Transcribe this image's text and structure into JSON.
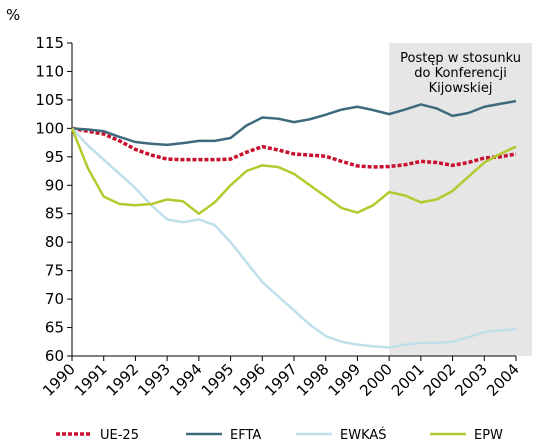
{
  "chart_data": {
    "type": "line",
    "y_label": "%",
    "annotation": [
      "Postęp w stosunku",
      "do Konferencji",
      "Kijowskiej"
    ],
    "shaded_region": [
      2000,
      2004
    ],
    "x": [
      1990,
      1990.5,
      1991,
      1991.5,
      1992,
      1992.5,
      1993,
      1993.5,
      1994,
      1994.5,
      1995,
      1995.5,
      1996,
      1996.5,
      1997,
      1997.5,
      1998,
      1998.5,
      1999,
      1999.5,
      2000,
      2000.5,
      2001,
      2001.5,
      2002,
      2002.5,
      2003,
      2003.5,
      2004
    ],
    "xlim": [
      1990,
      2004
    ],
    "xticks": [
      1990,
      1991,
      1992,
      1993,
      1994,
      1995,
      1996,
      1997,
      1998,
      1999,
      2000,
      2001,
      2002,
      2003,
      2004
    ],
    "ylim": [
      60,
      115
    ],
    "yticks": [
      60,
      65,
      70,
      75,
      80,
      85,
      90,
      95,
      100,
      105,
      110,
      115
    ],
    "series": [
      {
        "name": "UE-25",
        "color": "#c8102e",
        "dashed": true,
        "values": [
          100,
          99.5,
          99.0,
          97.8,
          96.3,
          95.3,
          94.6,
          94.5,
          94.5,
          94.5,
          94.6,
          95.8,
          96.8,
          96.2,
          95.5,
          95.3,
          95.1,
          94.2,
          93.4,
          93.2,
          93.3,
          93.6,
          94.2,
          94.0,
          93.5,
          94.0,
          94.8,
          95.0,
          95.5
        ]
      },
      {
        "name": "EFTA",
        "color": "#3d6b7d",
        "values": [
          100,
          99.8,
          99.5,
          98.5,
          97.6,
          97.3,
          97.1,
          97.4,
          97.8,
          97.8,
          98.3,
          100.5,
          101.9,
          101.7,
          101.1,
          101.6,
          102.4,
          103.3,
          103.8,
          103.2,
          102.5,
          103.3,
          104.2,
          103.5,
          102.2,
          102.7,
          103.8,
          104.3,
          104.8
        ]
      },
      {
        "name": "EWKAŚ",
        "color": "#bfe0ea",
        "values": [
          100,
          97,
          94.5,
          92,
          89.5,
          86.5,
          84,
          83.5,
          84,
          83,
          80,
          76.5,
          73,
          70.5,
          68,
          65.5,
          63.5,
          62.5,
          62,
          61.7,
          61.5,
          62,
          62.3,
          62.3,
          62.5,
          63.3,
          64.2,
          64.5,
          64.7
        ]
      },
      {
        "name": "EPW",
        "color": "#b5c92e",
        "values": [
          100,
          93,
          88,
          86.7,
          86.5,
          86.7,
          87.5,
          87.2,
          85,
          87,
          90,
          92.5,
          93.5,
          93.2,
          92,
          90,
          88,
          86,
          85.2,
          86.5,
          88.8,
          88.2,
          87,
          87.5,
          89,
          91.5,
          94,
          95.5,
          96.8
        ]
      }
    ]
  }
}
